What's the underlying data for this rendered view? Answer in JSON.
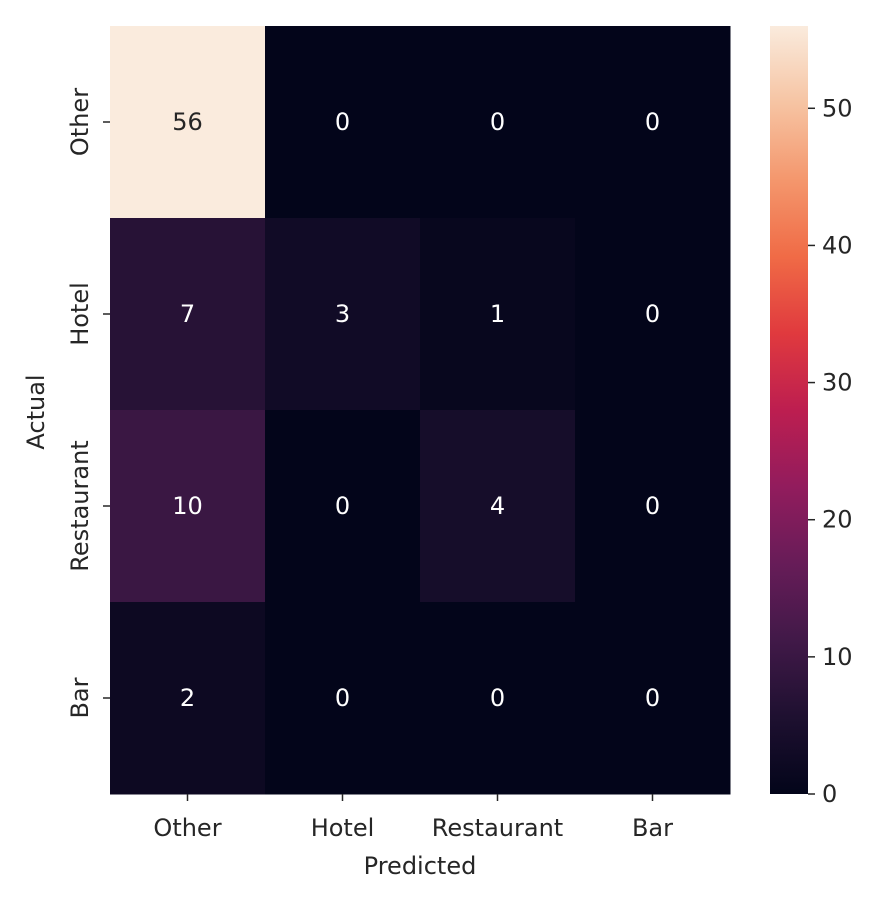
{
  "chart_data": {
    "type": "heatmap",
    "xlabel": "Predicted",
    "ylabel": "Actual",
    "x_categories": [
      "Other",
      "Hotel",
      "Restaurant",
      "Bar"
    ],
    "y_categories": [
      "Other",
      "Hotel",
      "Restaurant",
      "Bar"
    ],
    "matrix": [
      [
        56,
        0,
        0,
        0
      ],
      [
        7,
        3,
        1,
        0
      ],
      [
        10,
        0,
        4,
        0
      ],
      [
        2,
        0,
        0,
        0
      ]
    ],
    "colorbar": {
      "min": 0,
      "max": 56,
      "ticks": [
        0,
        10,
        20,
        30,
        40,
        50
      ],
      "colormap": "rocket"
    },
    "colors": {
      "low": "#03051a",
      "high": "#faebdd",
      "text_on_dark": "#ffffff",
      "text_on_light": "#262626"
    }
  }
}
